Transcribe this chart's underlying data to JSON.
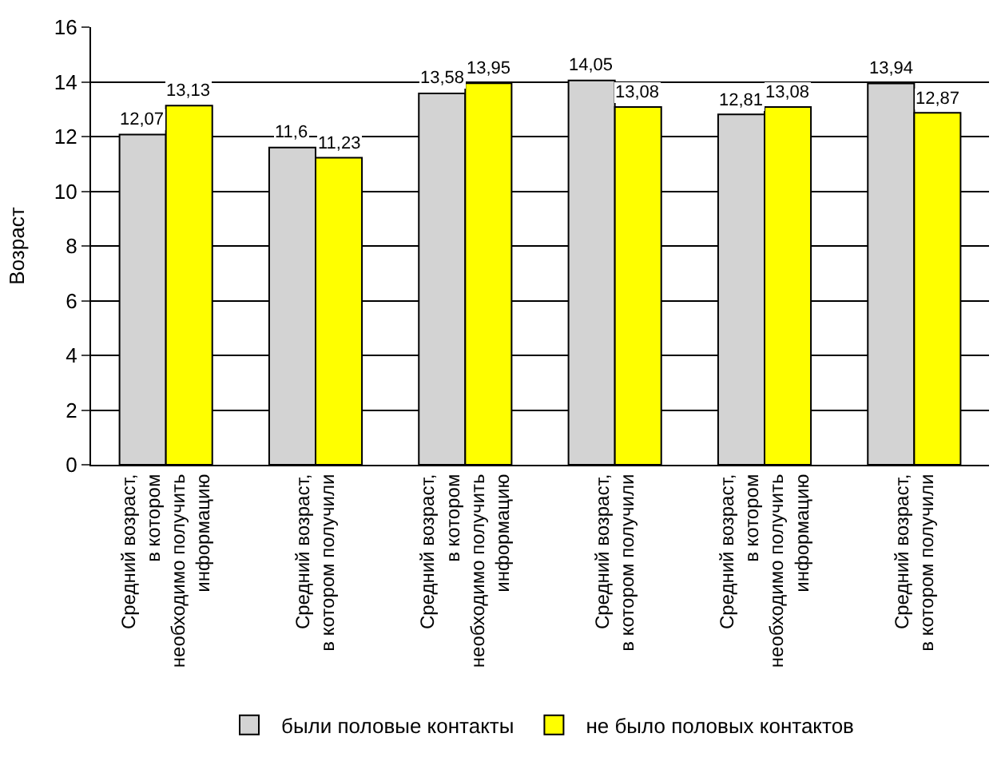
{
  "chart_data": {
    "type": "bar",
    "ylabel": "Возраст",
    "categories": [
      "Средний возраст,\nв котором\nнеобходимо получить\nинформацию",
      "Средний возраст,\nв котором получили",
      "Средний возраст,\nв котором\nнеобходимо получить\nинформацию",
      "Средний возраст,\nв котором получили",
      "Средний возраст,\nв котором\nнеобходимо получить\nинформацию",
      "Средний возраст,\nв котором получили"
    ],
    "series": [
      {
        "name": "были половые контакты",
        "color": "#d3d3d3",
        "values": [
          12.07,
          11.6,
          13.58,
          14.05,
          12.81,
          13.94
        ],
        "value_labels": [
          "12,07",
          "11,6",
          "13,58",
          "14,05",
          "12,81",
          "13,94"
        ]
      },
      {
        "name": "не было половых контактов",
        "color": "#ffff00",
        "values": [
          13.13,
          11.23,
          13.95,
          13.08,
          13.08,
          12.87
        ],
        "value_labels": [
          "13,13",
          "11,23",
          "13,95",
          "13,08",
          "13,08",
          "12,87"
        ]
      }
    ],
    "ylim": [
      0,
      16
    ],
    "yticks": [
      0,
      2,
      4,
      6,
      8,
      10,
      12,
      14,
      16
    ],
    "grid": "y",
    "legend": "bottom"
  }
}
